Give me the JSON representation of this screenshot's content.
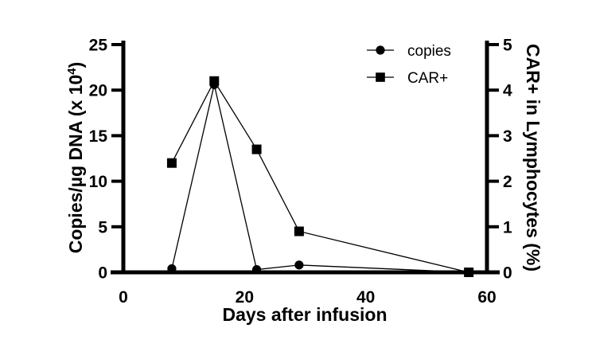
{
  "figure": {
    "background": "#ffffff",
    "ink": "#000000"
  },
  "chart_data": {
    "type": "line",
    "title": "",
    "grid": false,
    "x": [
      8,
      15,
      22,
      29,
      57
    ],
    "x_axis": {
      "label": "Days after infusion",
      "ticks": [
        0,
        20,
        40,
        60
      ],
      "range": [
        0,
        60
      ]
    },
    "left_axis": {
      "label": "Copies/µg DNA (x 10⁴)",
      "label_pre": "Copies/µg DNA (x 10",
      "label_sup": "4",
      "label_post": ")",
      "ticks": [
        0,
        5,
        10,
        15,
        20,
        25
      ],
      "range": [
        0,
        25
      ]
    },
    "right_axis": {
      "label": "CAR+ in Lymphocytes (%)",
      "ticks": [
        0,
        1,
        2,
        3,
        4,
        5
      ],
      "range": [
        0,
        5
      ]
    },
    "series": [
      {
        "name": "copies",
        "axis": "left",
        "marker": "circle",
        "values": [
          0.4,
          20.6,
          0.3,
          0.8,
          0
        ]
      },
      {
        "name": "CAR+",
        "axis": "right",
        "marker": "square",
        "values": [
          2.4,
          4.2,
          2.7,
          0.9,
          0
        ]
      }
    ],
    "legend": {
      "position": "top-right-inside",
      "items": [
        {
          "label": "copies",
          "marker": "circle"
        },
        {
          "label": "CAR+",
          "marker": "square"
        }
      ]
    }
  }
}
